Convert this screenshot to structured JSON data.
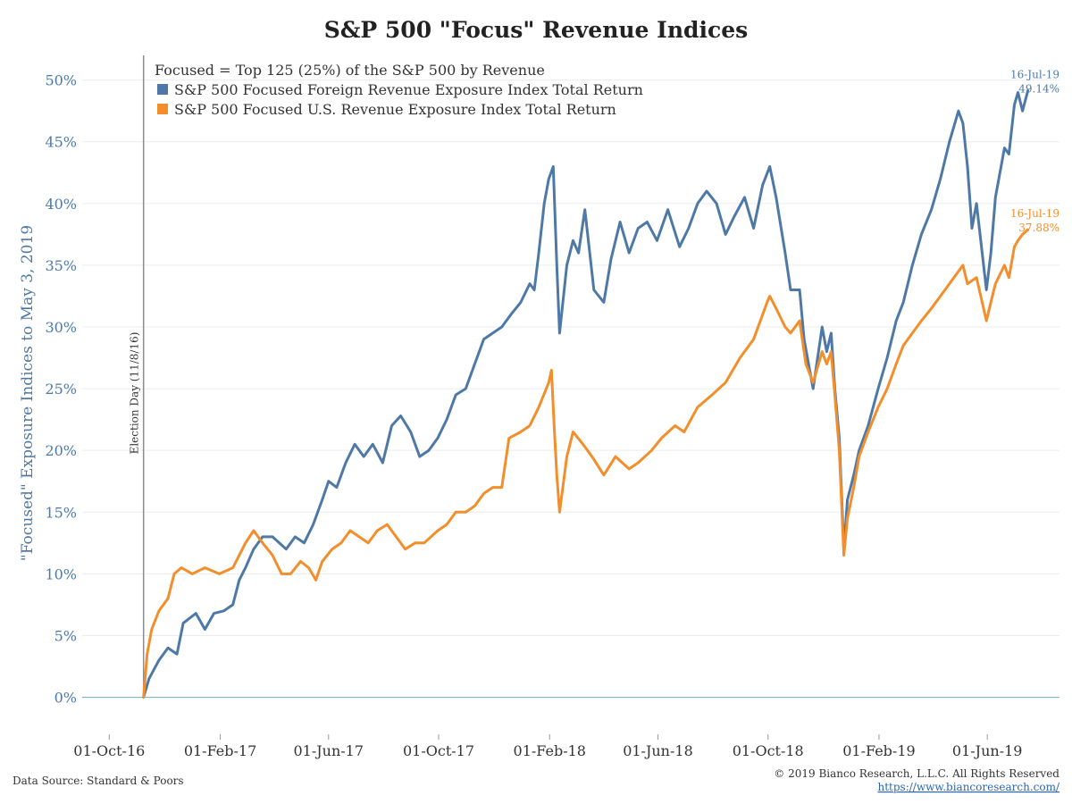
{
  "chart_data": {
    "type": "line",
    "title": "S&P 500 \"Focus\" Revenue Indices",
    "ylabel": "\"Focused\" Exposure Indices to May 3, 2019",
    "ylim": [
      -3,
      52
    ],
    "yticks": [
      0,
      5,
      10,
      15,
      20,
      25,
      30,
      35,
      40,
      45,
      50
    ],
    "ytick_labels": [
      "0%",
      "5%",
      "10%",
      "15%",
      "20%",
      "25%",
      "30%",
      "35%",
      "40%",
      "45%",
      "50%"
    ],
    "xlim": [
      "2016-09-01",
      "2019-08-20"
    ],
    "xticks": [
      "2016-10-01",
      "2017-02-01",
      "2017-06-01",
      "2017-10-01",
      "2018-02-01",
      "2018-06-01",
      "2018-10-01",
      "2019-02-01",
      "2019-06-01"
    ],
    "xtick_labels": [
      "01-Oct-16",
      "01-Feb-17",
      "01-Jun-17",
      "01-Oct-17",
      "01-Feb-18",
      "01-Jun-18",
      "01-Oct-18",
      "01-Feb-19",
      "01-Jun-19"
    ],
    "grid": true,
    "legend_position": "top-left",
    "legend_header": "Focused = Top 125 (25%) of the S&P 500 by Revenue",
    "event_line": {
      "x": "2016-11-08",
      "label": "Election Day (11/8/16)"
    },
    "series": [
      {
        "name": "S&P 500 Focused Foreign Revenue Exposure Index Total Return",
        "color": "#4e79a7",
        "end_label_date": "16-Jul-19",
        "end_label_value": "49.14%",
        "points": [
          [
            "2016-11-08",
            0.0
          ],
          [
            "2016-11-14",
            1.5
          ],
          [
            "2016-11-25",
            3.0
          ],
          [
            "2016-12-05",
            4.0
          ],
          [
            "2016-12-15",
            3.5
          ],
          [
            "2016-12-22",
            6.0
          ],
          [
            "2017-01-05",
            6.8
          ],
          [
            "2017-01-15",
            5.5
          ],
          [
            "2017-01-25",
            6.8
          ],
          [
            "2017-02-05",
            7.0
          ],
          [
            "2017-02-15",
            7.5
          ],
          [
            "2017-02-22",
            9.5
          ],
          [
            "2017-03-01",
            10.5
          ],
          [
            "2017-03-10",
            12.0
          ],
          [
            "2017-03-20",
            13.0
          ],
          [
            "2017-03-31",
            13.0
          ],
          [
            "2017-04-15",
            12.0
          ],
          [
            "2017-04-25",
            13.0
          ],
          [
            "2017-05-05",
            12.5
          ],
          [
            "2017-05-15",
            14.0
          ],
          [
            "2017-05-25",
            16.0
          ],
          [
            "2017-06-01",
            17.5
          ],
          [
            "2017-06-10",
            17.0
          ],
          [
            "2017-06-20",
            19.0
          ],
          [
            "2017-06-30",
            20.5
          ],
          [
            "2017-07-10",
            19.5
          ],
          [
            "2017-07-20",
            20.5
          ],
          [
            "2017-07-31",
            19.0
          ],
          [
            "2017-08-10",
            22.0
          ],
          [
            "2017-08-20",
            22.8
          ],
          [
            "2017-08-31",
            21.5
          ],
          [
            "2017-09-10",
            19.5
          ],
          [
            "2017-09-20",
            20.0
          ],
          [
            "2017-09-30",
            21.0
          ],
          [
            "2017-10-10",
            22.5
          ],
          [
            "2017-10-20",
            24.5
          ],
          [
            "2017-10-31",
            25.0
          ],
          [
            "2017-11-10",
            27.0
          ],
          [
            "2017-11-20",
            29.0
          ],
          [
            "2017-11-30",
            29.5
          ],
          [
            "2017-12-10",
            30.0
          ],
          [
            "2017-12-20",
            31.0
          ],
          [
            "2017-12-31",
            32.0
          ],
          [
            "2018-01-10",
            33.5
          ],
          [
            "2018-01-15",
            33.0
          ],
          [
            "2018-01-20",
            36.0
          ],
          [
            "2018-01-26",
            40.0
          ],
          [
            "2018-01-31",
            42.0
          ],
          [
            "2018-02-05",
            43.0
          ],
          [
            "2018-02-09",
            35.0
          ],
          [
            "2018-02-12",
            29.5
          ],
          [
            "2018-02-20",
            35.0
          ],
          [
            "2018-02-27",
            37.0
          ],
          [
            "2018-03-05",
            36.0
          ],
          [
            "2018-03-12",
            39.5
          ],
          [
            "2018-03-22",
            33.0
          ],
          [
            "2018-04-02",
            32.0
          ],
          [
            "2018-04-10",
            35.5
          ],
          [
            "2018-04-20",
            38.5
          ],
          [
            "2018-04-30",
            36.0
          ],
          [
            "2018-05-10",
            38.0
          ],
          [
            "2018-05-20",
            38.5
          ],
          [
            "2018-05-31",
            37.0
          ],
          [
            "2018-06-12",
            39.5
          ],
          [
            "2018-06-25",
            36.5
          ],
          [
            "2018-07-05",
            38.0
          ],
          [
            "2018-07-15",
            40.0
          ],
          [
            "2018-07-25",
            41.0
          ],
          [
            "2018-08-05",
            40.0
          ],
          [
            "2018-08-15",
            37.5
          ],
          [
            "2018-08-25",
            39.0
          ],
          [
            "2018-09-05",
            40.5
          ],
          [
            "2018-09-15",
            38.0
          ],
          [
            "2018-09-25",
            41.5
          ],
          [
            "2018-10-03",
            43.0
          ],
          [
            "2018-10-10",
            40.5
          ],
          [
            "2018-10-20",
            36.0
          ],
          [
            "2018-10-26",
            33.0
          ],
          [
            "2018-11-05",
            33.0
          ],
          [
            "2018-11-10",
            29.0
          ],
          [
            "2018-11-20",
            25.0
          ],
          [
            "2018-11-30",
            30.0
          ],
          [
            "2018-12-05",
            28.0
          ],
          [
            "2018-12-10",
            29.5
          ],
          [
            "2018-12-14",
            25.0
          ],
          [
            "2018-12-19",
            21.0
          ],
          [
            "2018-12-24",
            12.0
          ],
          [
            "2018-12-28",
            16.0
          ],
          [
            "2019-01-04",
            18.0
          ],
          [
            "2019-01-10",
            20.0
          ],
          [
            "2019-01-20",
            22.0
          ],
          [
            "2019-01-31",
            25.0
          ],
          [
            "2019-02-10",
            27.5
          ],
          [
            "2019-02-20",
            30.5
          ],
          [
            "2019-02-28",
            32.0
          ],
          [
            "2019-03-10",
            35.0
          ],
          [
            "2019-03-20",
            37.5
          ],
          [
            "2019-03-31",
            39.5
          ],
          [
            "2019-04-10",
            42.0
          ],
          [
            "2019-04-20",
            45.0
          ],
          [
            "2019-04-30",
            47.5
          ],
          [
            "2019-05-05",
            46.5
          ],
          [
            "2019-05-10",
            43.0
          ],
          [
            "2019-05-15",
            38.0
          ],
          [
            "2019-05-20",
            40.0
          ],
          [
            "2019-05-31",
            33.0
          ],
          [
            "2019-06-05",
            36.0
          ],
          [
            "2019-06-10",
            40.5
          ],
          [
            "2019-06-20",
            44.5
          ],
          [
            "2019-06-25",
            44.0
          ],
          [
            "2019-07-01",
            48.0
          ],
          [
            "2019-07-05",
            49.0
          ],
          [
            "2019-07-10",
            47.5
          ],
          [
            "2019-07-16",
            49.14
          ]
        ]
      },
      {
        "name": "S&P 500 Focused U.S. Revenue Exposure Index Total Return",
        "color": "#f28e2b",
        "end_label_date": "16-Jul-19",
        "end_label_value": "37.88%",
        "points": [
          [
            "2016-11-08",
            0.0
          ],
          [
            "2016-11-12",
            3.5
          ],
          [
            "2016-11-17",
            5.5
          ],
          [
            "2016-11-25",
            7.0
          ],
          [
            "2016-12-05",
            8.0
          ],
          [
            "2016-12-12",
            10.0
          ],
          [
            "2016-12-20",
            10.5
          ],
          [
            "2017-01-01",
            10.0
          ],
          [
            "2017-01-15",
            10.5
          ],
          [
            "2017-01-31",
            10.0
          ],
          [
            "2017-02-15",
            10.5
          ],
          [
            "2017-03-01",
            12.5
          ],
          [
            "2017-03-10",
            13.5
          ],
          [
            "2017-03-20",
            12.5
          ],
          [
            "2017-03-31",
            11.5
          ],
          [
            "2017-04-10",
            10.0
          ],
          [
            "2017-04-20",
            10.0
          ],
          [
            "2017-05-01",
            11.0
          ],
          [
            "2017-05-10",
            10.5
          ],
          [
            "2017-05-18",
            9.5
          ],
          [
            "2017-05-25",
            11.0
          ],
          [
            "2017-06-05",
            12.0
          ],
          [
            "2017-06-15",
            12.5
          ],
          [
            "2017-06-25",
            13.5
          ],
          [
            "2017-07-05",
            13.0
          ],
          [
            "2017-07-15",
            12.5
          ],
          [
            "2017-07-25",
            13.5
          ],
          [
            "2017-08-05",
            14.0
          ],
          [
            "2017-08-15",
            13.0
          ],
          [
            "2017-08-25",
            12.0
          ],
          [
            "2017-09-05",
            12.5
          ],
          [
            "2017-09-15",
            12.5
          ],
          [
            "2017-09-30",
            13.5
          ],
          [
            "2017-10-10",
            14.0
          ],
          [
            "2017-10-20",
            15.0
          ],
          [
            "2017-10-31",
            15.0
          ],
          [
            "2017-11-10",
            15.5
          ],
          [
            "2017-11-20",
            16.5
          ],
          [
            "2017-11-30",
            17.0
          ],
          [
            "2017-12-10",
            17.0
          ],
          [
            "2017-12-18",
            21.0
          ],
          [
            "2017-12-31",
            21.5
          ],
          [
            "2018-01-10",
            22.0
          ],
          [
            "2018-01-20",
            23.5
          ],
          [
            "2018-01-31",
            25.5
          ],
          [
            "2018-02-03",
            26.5
          ],
          [
            "2018-02-06",
            22.0
          ],
          [
            "2018-02-09",
            18.0
          ],
          [
            "2018-02-12",
            15.0
          ],
          [
            "2018-02-20",
            19.5
          ],
          [
            "2018-02-27",
            21.5
          ],
          [
            "2018-03-10",
            20.5
          ],
          [
            "2018-03-20",
            19.5
          ],
          [
            "2018-04-02",
            18.0
          ],
          [
            "2018-04-15",
            19.5
          ],
          [
            "2018-04-30",
            18.5
          ],
          [
            "2018-05-10",
            19.0
          ],
          [
            "2018-05-25",
            20.0
          ],
          [
            "2018-06-05",
            21.0
          ],
          [
            "2018-06-20",
            22.0
          ],
          [
            "2018-06-30",
            21.5
          ],
          [
            "2018-07-15",
            23.5
          ],
          [
            "2018-07-31",
            24.5
          ],
          [
            "2018-08-15",
            25.5
          ],
          [
            "2018-08-31",
            27.5
          ],
          [
            "2018-09-15",
            29.0
          ],
          [
            "2018-09-30",
            32.0
          ],
          [
            "2018-10-03",
            32.5
          ],
          [
            "2018-10-10",
            31.5
          ],
          [
            "2018-10-20",
            30.0
          ],
          [
            "2018-10-26",
            29.5
          ],
          [
            "2018-11-05",
            30.5
          ],
          [
            "2018-11-12",
            27.0
          ],
          [
            "2018-11-20",
            25.5
          ],
          [
            "2018-11-30",
            28.0
          ],
          [
            "2018-12-05",
            27.0
          ],
          [
            "2018-12-10",
            28.0
          ],
          [
            "2018-12-14",
            24.5
          ],
          [
            "2018-12-19",
            20.0
          ],
          [
            "2018-12-24",
            11.5
          ],
          [
            "2018-12-28",
            14.5
          ],
          [
            "2019-01-04",
            17.0
          ],
          [
            "2019-01-10",
            19.5
          ],
          [
            "2019-01-20",
            21.5
          ],
          [
            "2019-01-31",
            23.5
          ],
          [
            "2019-02-10",
            25.0
          ],
          [
            "2019-02-20",
            27.0
          ],
          [
            "2019-02-28",
            28.5
          ],
          [
            "2019-03-10",
            29.5
          ],
          [
            "2019-03-20",
            30.5
          ],
          [
            "2019-03-31",
            31.5
          ],
          [
            "2019-04-10",
            32.5
          ],
          [
            "2019-04-20",
            33.5
          ],
          [
            "2019-04-30",
            34.5
          ],
          [
            "2019-05-05",
            35.0
          ],
          [
            "2019-05-10",
            33.5
          ],
          [
            "2019-05-20",
            34.0
          ],
          [
            "2019-05-31",
            30.5
          ],
          [
            "2019-06-05",
            32.0
          ],
          [
            "2019-06-10",
            33.5
          ],
          [
            "2019-06-20",
            35.0
          ],
          [
            "2019-06-25",
            34.0
          ],
          [
            "2019-07-01",
            36.5
          ],
          [
            "2019-07-05",
            37.0
          ],
          [
            "2019-07-10",
            37.5
          ],
          [
            "2019-07-16",
            37.88
          ]
        ]
      }
    ]
  },
  "footer": {
    "source": "Data Source: Standard & Poors",
    "copyright": "© 2019 Bianco Research, L.L.C. All Rights Reserved",
    "url": "https://www.biancoresearch.com/"
  }
}
